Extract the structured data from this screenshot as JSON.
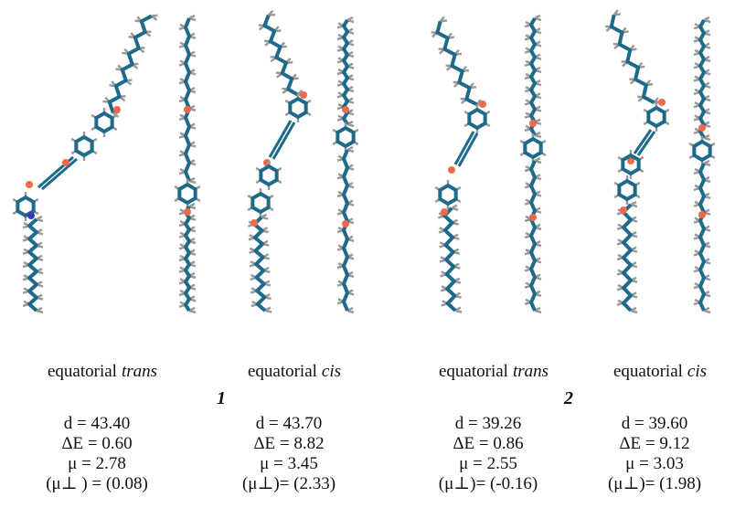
{
  "panels": [
    {
      "caption": {
        "text": "equatorial",
        "isomer": "trans"
      },
      "d": "d = 43.40",
      "dE": "ΔE = 0.60",
      "mu": "μ = 2.78",
      "mu_perp": "(μ⊥ ) = (0.08)"
    },
    {
      "caption": {
        "text": "equatorial",
        "isomer": "cis"
      },
      "d": "d = 43.70",
      "dE": "ΔE = 8.82",
      "mu": "μ = 3.45",
      "mu_perp": "(μ⊥)= (2.33)"
    },
    {
      "caption": {
        "text": "equatorial",
        "isomer": "trans"
      },
      "d": "d = 39.26",
      "dE": "ΔE = 0.86",
      "mu": "μ = 2.55",
      "mu_perp": "(μ⊥)= (-0.16)"
    },
    {
      "caption": {
        "text": "equatorial",
        "isomer": "cis"
      },
      "d": "d = 39.60",
      "dE": "ΔE = 9.12",
      "mu": "μ = 3.03",
      "mu_perp": "(μ⊥)= (1.98)"
    }
  ],
  "compounds": [
    "1",
    "2"
  ]
}
